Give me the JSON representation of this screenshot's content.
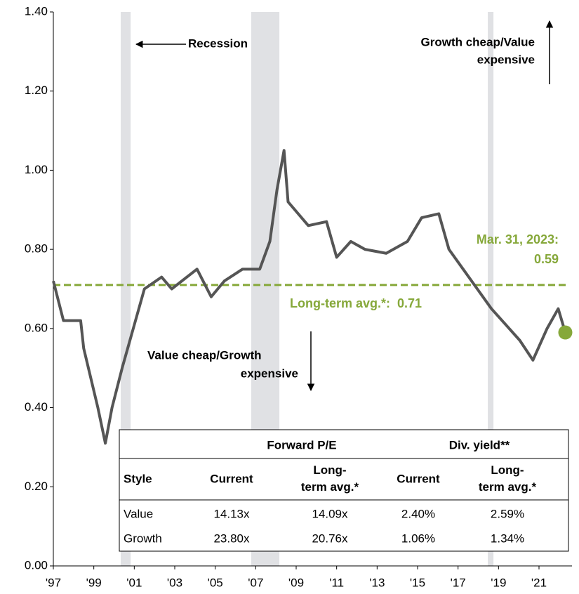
{
  "chart_data": {
    "type": "line",
    "x": [
      1997.0,
      1997.5,
      1998.35,
      1998.5,
      1999.2,
      1999.57,
      1999.9,
      2000.4,
      2000.95,
      2001.5,
      2002.35,
      2002.85,
      2004.1,
      2004.8,
      2005.45,
      2006.35,
      2007.2,
      2007.7,
      2008.05,
      2008.4,
      2008.6,
      2009.6,
      2010.5,
      2011.0,
      2011.7,
      2012.4,
      2013.45,
      2014.5,
      2015.2,
      2016.05,
      2016.55,
      2017.25,
      2017.95,
      2018.65,
      2019.35,
      2020.05,
      2020.7,
      2021.4,
      2021.95,
      2022.3
    ],
    "series": [
      {
        "color": "#555555",
        "values": [
          0.72,
          0.62,
          0.62,
          0.55,
          0.4,
          0.31,
          0.4,
          0.5,
          0.6,
          0.7,
          0.73,
          0.7,
          0.75,
          0.68,
          0.72,
          0.75,
          0.75,
          0.82,
          0.95,
          1.05,
          0.92,
          0.86,
          0.87,
          0.78,
          0.82,
          0.8,
          0.79,
          0.82,
          0.88,
          0.89,
          0.8,
          0.75,
          0.7,
          0.65,
          0.61,
          0.57,
          0.52,
          0.6,
          0.65,
          0.59
        ]
      }
    ],
    "xlim": [
      1997,
      2022.63
    ],
    "ylim": [
      0,
      1.4
    ],
    "xticks": [
      {
        "value": 1997,
        "label": "'97"
      },
      {
        "value": 1999,
        "label": "'99"
      },
      {
        "value": 2001,
        "label": "'01"
      },
      {
        "value": 2003,
        "label": "'03"
      },
      {
        "value": 2005,
        "label": "'05"
      },
      {
        "value": 2007,
        "label": "'07"
      },
      {
        "value": 2009,
        "label": "'09"
      },
      {
        "value": 2011,
        "label": "'11"
      },
      {
        "value": 2013,
        "label": "'13"
      },
      {
        "value": 2015,
        "label": "'15"
      },
      {
        "value": 2017,
        "label": "'17"
      },
      {
        "value": 2019,
        "label": "'19"
      },
      {
        "value": 2021,
        "label": "'21"
      }
    ],
    "yticks": [
      {
        "value": 0,
        "label": "0.00"
      },
      {
        "value": 0.2,
        "label": "0.20"
      },
      {
        "value": 0.4,
        "label": "0.40"
      },
      {
        "value": 0.6,
        "label": "0.60"
      },
      {
        "value": 0.8,
        "label": "0.80"
      },
      {
        "value": 1.0,
        "label": "1.00"
      },
      {
        "value": 1.2,
        "label": "1.20"
      },
      {
        "value": 1.4,
        "label": "1.40"
      }
    ],
    "recessions": [
      [
        2000.33,
        2000.82
      ],
      [
        2006.78,
        2008.17
      ],
      [
        2018.47,
        2018.75
      ]
    ],
    "recession_color": "#e0e1e4",
    "average": 0.71,
    "average_color": "#86a83a",
    "annotations": {
      "recession": "Recession",
      "growth_cheap": [
        "Growth cheap/Value",
        "expensive"
      ],
      "value_cheap": [
        "Value cheap/Growth",
        "expensive"
      ],
      "latest": [
        "Mar. 31, 2023:",
        "0.59"
      ],
      "average": "Long-term avg.*:  0.71"
    }
  },
  "table": {
    "groups": [
      "Forward P/E",
      "Div. yield**"
    ],
    "header": [
      "Style",
      "Current",
      "Long-\nterm avg.*",
      "Current",
      "Long-\nterm avg.*"
    ],
    "rows": [
      [
        "Value",
        "14.13x",
        "14.09x",
        "2.40%",
        "2.59%"
      ],
      [
        "Growth",
        "23.80x",
        "20.76x",
        "1.06%",
        "1.34%"
      ]
    ]
  }
}
